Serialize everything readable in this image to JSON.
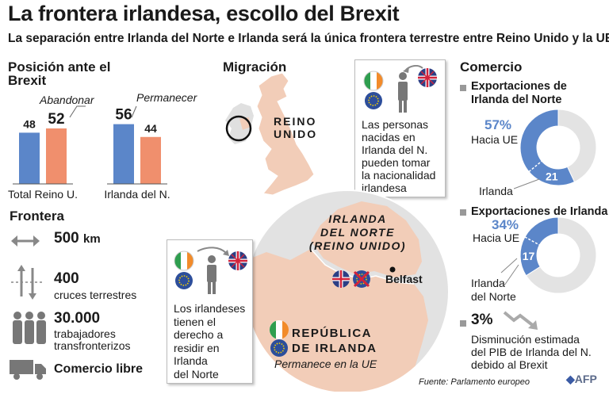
{
  "title": "La frontera irlandesa, escollo del Brexit",
  "subtitle": "La separación entre Irlanda del Norte e Irlanda será la única frontera terrestre entre Reino Unido y la UE",
  "posicion": {
    "heading": "Posición ante el Brexit",
    "legend_leave": "Abandonar",
    "legend_remain": "Permanecer"
  },
  "frontera": {
    "heading": "Frontera",
    "length_value": "500",
    "length_unit": "km",
    "crossings_value": "400",
    "crossings_label": "cruces terrestres",
    "workers_value": "30.000",
    "workers_label_1": "trabajadores",
    "workers_label_2": "transfronterizos",
    "trade_label": "Comercio libre"
  },
  "migracion": {
    "heading": "Migración",
    "uk_label_1": "REINO",
    "uk_label_2": "UNIDO",
    "box1": [
      "Las personas",
      "nacidas en",
      "Irlanda del N.",
      "pueden tomar",
      "la nacionalidad",
      "irlandesa"
    ],
    "box2": [
      "Los irlandeses",
      "tienen el",
      "derecho a",
      "residir en",
      "Irlanda",
      "del Norte"
    ]
  },
  "map": {
    "ni_1": "IRLANDA",
    "ni_2": "DEL NORTE",
    "ni_3": "(REINO UNIDO)",
    "belfast": "Belfast",
    "roi_1": "REPÚBLICA",
    "roi_2": "DE IRLANDA",
    "roi_3": "Permanece en la UE"
  },
  "comercio": {
    "heading": "Comercio",
    "ni_exports_1": "Exportaciones de",
    "ni_exports_2": "Irlanda del Norte",
    "ni_pct": "57%",
    "ni_hacia": "Hacia UE",
    "ni_irlanda": "Irlanda",
    "ie_exports": "Exportaciones de Irlanda",
    "ie_pct": "34%",
    "ie_hacia": "Hacia UE",
    "ie_norte_1": "Irlanda",
    "ie_norte_2": "del Norte",
    "gdp_value": "3%",
    "gdp_1": "Disminución estimada",
    "gdp_2": "del PIB de Irlanda del N.",
    "gdp_3": "debido al Brexit"
  },
  "source": "Fuente: Parlamento europeo",
  "logo": "AFP",
  "colors": {
    "leave": "#f08f6d",
    "remain": "#5b86c9",
    "donut_rest": "#e3e3e3",
    "land": "#f2cdb8"
  },
  "chart_data": [
    {
      "type": "bar",
      "categories": [
        "Total Reino U.",
        "Irlanda del N."
      ],
      "series": [
        {
          "name": "Abandonar",
          "values": [
            52,
            44
          ]
        },
        {
          "name": "Permanecer",
          "values": [
            48,
            56
          ]
        }
      ],
      "ylim": [
        0,
        60
      ]
    },
    {
      "type": "pie",
      "title": "Exportaciones de Irlanda del Norte",
      "labels": [
        "Hacia UE",
        "Irlanda"
      ],
      "values": [
        57,
        21
      ]
    },
    {
      "type": "pie",
      "title": "Exportaciones de Irlanda",
      "labels": [
        "Hacia UE",
        "Irlanda del Norte"
      ],
      "values": [
        34,
        17
      ]
    }
  ]
}
